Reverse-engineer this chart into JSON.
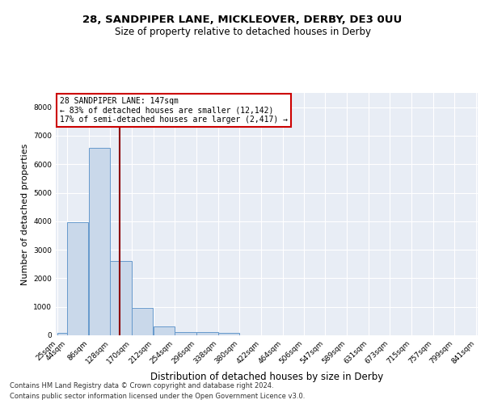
{
  "title": "28, SANDPIPER LANE, MICKLEOVER, DERBY, DE3 0UU",
  "subtitle": "Size of property relative to detached houses in Derby",
  "xlabel": "Distribution of detached houses by size in Derby",
  "ylabel": "Number of detached properties",
  "footer_line1": "Contains HM Land Registry data © Crown copyright and database right 2024.",
  "footer_line2": "Contains public sector information licensed under the Open Government Licence v3.0.",
  "annotation_line1": "28 SANDPIPER LANE: 147sqm",
  "annotation_line2": "← 83% of detached houses are smaller (12,142)",
  "annotation_line3": "17% of semi-detached houses are larger (2,417) →",
  "bin_edges": [
    25,
    44,
    86,
    128,
    170,
    212,
    254,
    296,
    338,
    380,
    422,
    464,
    506,
    547,
    589,
    631,
    673,
    715,
    757,
    799,
    841
  ],
  "bar_heights": [
    80,
    3980,
    6560,
    2600,
    960,
    310,
    120,
    100,
    80,
    0,
    0,
    0,
    0,
    0,
    0,
    0,
    0,
    0,
    0,
    0
  ],
  "bar_color": "#c9d8ea",
  "bar_edge_color": "#6699cc",
  "vline_x": 147,
  "vline_color": "#8b0000",
  "ylim": [
    0,
    8500
  ],
  "yticks": [
    0,
    1000,
    2000,
    3000,
    4000,
    5000,
    6000,
    7000,
    8000
  ],
  "background_color": "#e8edf5",
  "grid_color": "#ffffff",
  "title_fontsize": 9.5,
  "subtitle_fontsize": 8.5,
  "xlabel_fontsize": 8.5,
  "ylabel_fontsize": 8,
  "tick_fontsize": 6.5,
  "annotation_fontsize": 7,
  "footer_fontsize": 6
}
